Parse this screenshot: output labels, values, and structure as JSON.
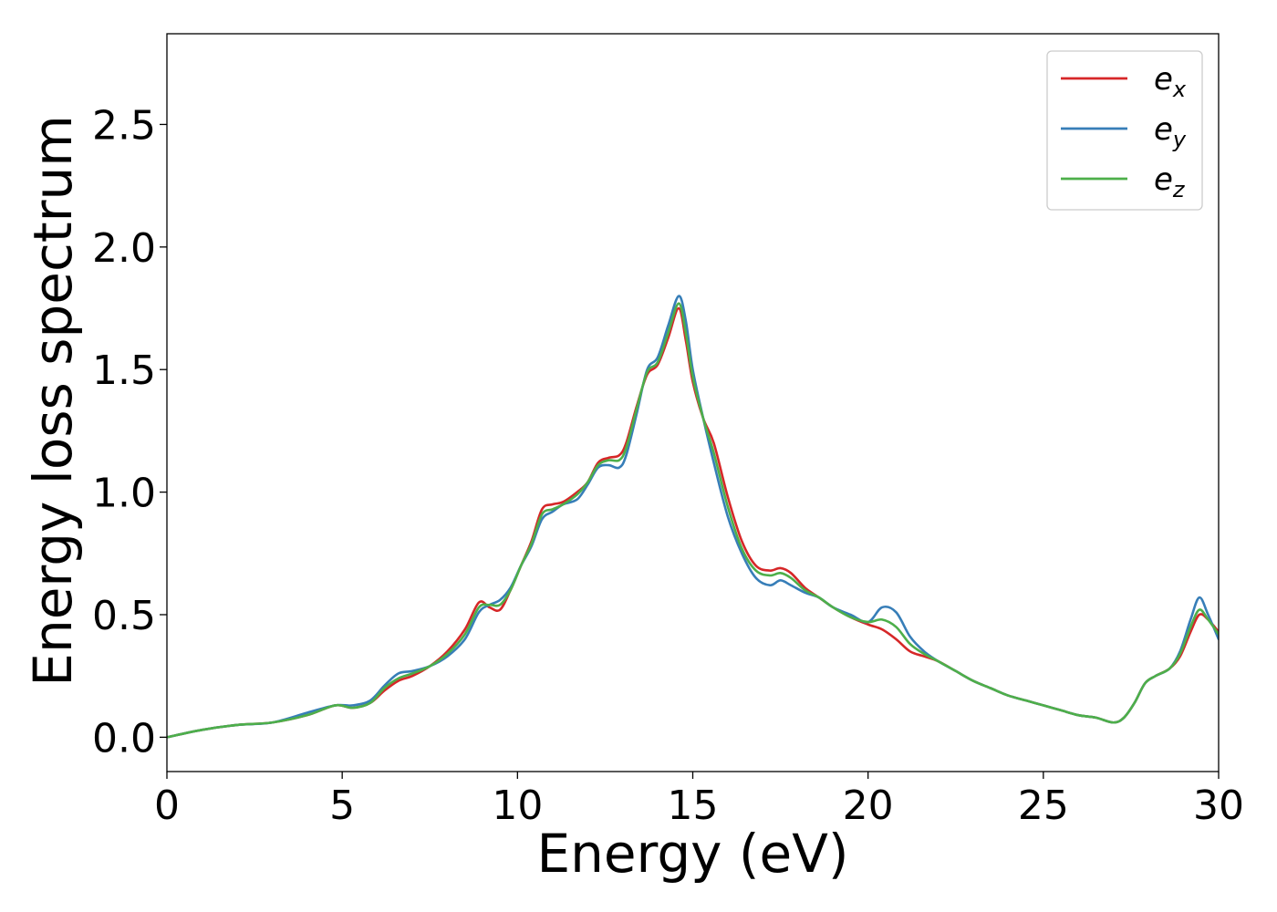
{
  "chart_data": {
    "type": "line",
    "title": "",
    "xlabel": "Energy (eV)",
    "ylabel": "Energy loss spectrum",
    "xlim": [
      0,
      30
    ],
    "ylim": [
      -0.14,
      2.87
    ],
    "xticks": [
      0,
      5,
      10,
      15,
      20,
      25,
      30
    ],
    "xtick_labels": [
      "0",
      "5",
      "10",
      "15",
      "20",
      "25",
      "30"
    ],
    "yticks": [
      0.0,
      0.5,
      1.0,
      1.5,
      2.0,
      2.5
    ],
    "ytick_labels": [
      "0.0",
      "0.5",
      "1.0",
      "1.5",
      "2.0",
      "2.5"
    ],
    "grid": false,
    "legend": {
      "position": "top-right",
      "entries": [
        {
          "base": "e",
          "sub": "x",
          "color": "#d62728"
        },
        {
          "base": "e",
          "sub": "y",
          "color": "#377eb8"
        },
        {
          "base": "e",
          "sub": "z",
          "color": "#4daf4a"
        }
      ]
    },
    "series": [
      {
        "name": "e_x",
        "color": "#d62728",
        "x": [
          0,
          1,
          2,
          3,
          4,
          4.8,
          5.3,
          5.8,
          6.2,
          6.6,
          7.0,
          7.5,
          8.0,
          8.5,
          8.9,
          9.2,
          9.5,
          9.8,
          10.1,
          10.4,
          10.7,
          11.0,
          11.3,
          11.7,
          12.0,
          12.3,
          12.6,
          12.9,
          13.1,
          13.4,
          13.7,
          14.0,
          14.3,
          14.6,
          14.8,
          15.0,
          15.3,
          15.6,
          16.0,
          16.4,
          16.8,
          17.2,
          17.5,
          17.8,
          18.2,
          18.6,
          19.0,
          19.5,
          20.0,
          20.4,
          20.8,
          21.2,
          21.6,
          22.0,
          22.5,
          23.0,
          23.5,
          24.0,
          24.5,
          25.0,
          25.5,
          26.0,
          26.5,
          27.0,
          27.3,
          27.6,
          27.9,
          28.2,
          28.6,
          28.9,
          29.2,
          29.45,
          29.7,
          30.0
        ],
        "values": [
          0.0,
          0.03,
          0.05,
          0.06,
          0.09,
          0.13,
          0.12,
          0.14,
          0.19,
          0.23,
          0.25,
          0.29,
          0.35,
          0.44,
          0.55,
          0.53,
          0.52,
          0.6,
          0.7,
          0.8,
          0.93,
          0.95,
          0.96,
          1.0,
          1.04,
          1.12,
          1.14,
          1.15,
          1.2,
          1.35,
          1.48,
          1.52,
          1.63,
          1.75,
          1.62,
          1.45,
          1.3,
          1.2,
          0.98,
          0.8,
          0.7,
          0.68,
          0.69,
          0.67,
          0.61,
          0.57,
          0.53,
          0.49,
          0.46,
          0.44,
          0.4,
          0.35,
          0.33,
          0.31,
          0.27,
          0.23,
          0.2,
          0.17,
          0.15,
          0.13,
          0.11,
          0.09,
          0.08,
          0.06,
          0.08,
          0.14,
          0.22,
          0.25,
          0.28,
          0.33,
          0.43,
          0.5,
          0.48,
          0.43
        ]
      },
      {
        "name": "e_y",
        "color": "#377eb8",
        "x": [
          0,
          1,
          2,
          3,
          4,
          4.8,
          5.3,
          5.8,
          6.2,
          6.6,
          7.0,
          7.5,
          8.0,
          8.5,
          8.9,
          9.2,
          9.5,
          9.8,
          10.1,
          10.4,
          10.7,
          11.0,
          11.3,
          11.7,
          12.0,
          12.3,
          12.6,
          12.9,
          13.1,
          13.4,
          13.7,
          14.0,
          14.3,
          14.6,
          14.8,
          15.0,
          15.3,
          15.6,
          16.0,
          16.4,
          16.8,
          17.2,
          17.5,
          17.8,
          18.2,
          18.6,
          19.0,
          19.5,
          20.0,
          20.4,
          20.8,
          21.2,
          21.6,
          22.0,
          22.5,
          23.0,
          23.5,
          24.0,
          24.5,
          25.0,
          25.5,
          26.0,
          26.5,
          27.0,
          27.3,
          27.6,
          27.9,
          28.2,
          28.6,
          28.9,
          29.2,
          29.45,
          29.7,
          30.0
        ],
        "values": [
          0.0,
          0.03,
          0.05,
          0.06,
          0.1,
          0.13,
          0.13,
          0.15,
          0.21,
          0.26,
          0.27,
          0.29,
          0.33,
          0.4,
          0.51,
          0.54,
          0.56,
          0.61,
          0.7,
          0.78,
          0.89,
          0.92,
          0.95,
          0.97,
          1.03,
          1.1,
          1.11,
          1.1,
          1.15,
          1.32,
          1.5,
          1.55,
          1.68,
          1.8,
          1.7,
          1.5,
          1.3,
          1.12,
          0.9,
          0.75,
          0.65,
          0.62,
          0.64,
          0.62,
          0.59,
          0.57,
          0.53,
          0.5,
          0.47,
          0.53,
          0.51,
          0.41,
          0.35,
          0.31,
          0.27,
          0.23,
          0.2,
          0.17,
          0.15,
          0.13,
          0.11,
          0.09,
          0.08,
          0.06,
          0.08,
          0.14,
          0.22,
          0.25,
          0.28,
          0.35,
          0.48,
          0.57,
          0.5,
          0.4
        ]
      },
      {
        "name": "e_z",
        "color": "#4daf4a",
        "x": [
          0,
          1,
          2,
          3,
          4,
          4.8,
          5.3,
          5.8,
          6.2,
          6.6,
          7.0,
          7.5,
          8.0,
          8.5,
          8.9,
          9.2,
          9.5,
          9.8,
          10.1,
          10.4,
          10.7,
          11.0,
          11.3,
          11.7,
          12.0,
          12.3,
          12.6,
          12.9,
          13.1,
          13.4,
          13.7,
          14.0,
          14.3,
          14.6,
          14.8,
          15.0,
          15.3,
          15.6,
          16.0,
          16.4,
          16.8,
          17.2,
          17.5,
          17.8,
          18.2,
          18.6,
          19.0,
          19.5,
          20.0,
          20.4,
          20.8,
          21.2,
          21.6,
          22.0,
          22.5,
          23.0,
          23.5,
          24.0,
          24.5,
          25.0,
          25.5,
          26.0,
          26.5,
          27.0,
          27.3,
          27.6,
          27.9,
          28.2,
          28.6,
          28.9,
          29.2,
          29.45,
          29.7,
          30.0
        ],
        "values": [
          0.0,
          0.03,
          0.05,
          0.06,
          0.09,
          0.13,
          0.12,
          0.14,
          0.2,
          0.24,
          0.26,
          0.29,
          0.34,
          0.42,
          0.53,
          0.54,
          0.54,
          0.6,
          0.7,
          0.79,
          0.91,
          0.93,
          0.95,
          0.99,
          1.04,
          1.11,
          1.13,
          1.13,
          1.18,
          1.34,
          1.49,
          1.53,
          1.65,
          1.77,
          1.65,
          1.47,
          1.3,
          1.16,
          0.94,
          0.77,
          0.68,
          0.66,
          0.67,
          0.65,
          0.6,
          0.57,
          0.53,
          0.49,
          0.47,
          0.48,
          0.45,
          0.38,
          0.34,
          0.31,
          0.27,
          0.23,
          0.2,
          0.17,
          0.15,
          0.13,
          0.11,
          0.09,
          0.08,
          0.06,
          0.08,
          0.14,
          0.22,
          0.25,
          0.28,
          0.34,
          0.45,
          0.52,
          0.48,
          0.42
        ]
      }
    ]
  }
}
